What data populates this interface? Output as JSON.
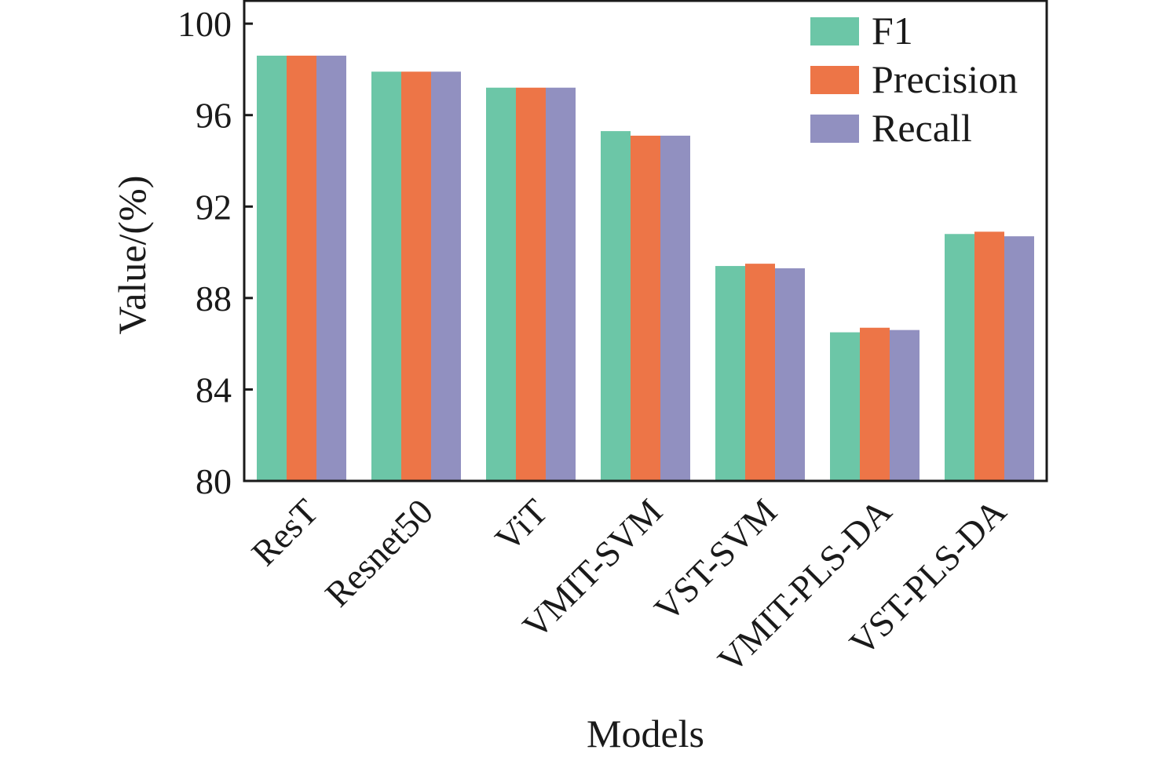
{
  "chart_data": {
    "type": "bar",
    "categories": [
      "ResT",
      "Resnet50",
      "ViT",
      "VMIT-SVM",
      "VST-SVM",
      "VMIT-PLS-DA",
      "VST-PLS-DA"
    ],
    "series": [
      {
        "name": "F1",
        "color": "#6cc6a7",
        "values": [
          98.6,
          97.9,
          97.2,
          95.3,
          89.4,
          86.5,
          90.8
        ]
      },
      {
        "name": "Precision",
        "color": "#ed7547",
        "values": [
          98.6,
          97.9,
          97.2,
          95.1,
          89.5,
          86.7,
          90.9
        ]
      },
      {
        "name": "Recall",
        "color": "#9190c0",
        "values": [
          98.6,
          97.9,
          97.2,
          95.1,
          89.3,
          86.6,
          90.7
        ]
      }
    ],
    "xlabel": "Models",
    "ylabel": "Value/(%)",
    "ylim": [
      80,
      101
    ],
    "yticks": [
      "80",
      "84",
      "88",
      "92",
      "96",
      "100"
    ],
    "grid": false,
    "legend_position": "top-right"
  }
}
